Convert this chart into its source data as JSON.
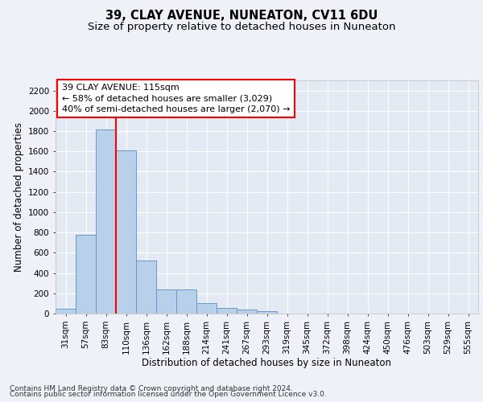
{
  "title": "39, CLAY AVENUE, NUNEATON, CV11 6DU",
  "subtitle": "Size of property relative to detached houses in Nuneaton",
  "xlabel": "Distribution of detached houses by size in Nuneaton",
  "ylabel": "Number of detached properties",
  "categories": [
    "31sqm",
    "57sqm",
    "83sqm",
    "110sqm",
    "136sqm",
    "162sqm",
    "188sqm",
    "214sqm",
    "241sqm",
    "267sqm",
    "293sqm",
    "319sqm",
    "345sqm",
    "372sqm",
    "398sqm",
    "424sqm",
    "450sqm",
    "476sqm",
    "503sqm",
    "529sqm",
    "555sqm"
  ],
  "values": [
    50,
    780,
    1820,
    1610,
    520,
    235,
    235,
    105,
    55,
    38,
    20,
    0,
    0,
    0,
    0,
    0,
    0,
    0,
    0,
    0,
    0
  ],
  "bar_color": "#b8d0ea",
  "bar_edge_color": "#6699cc",
  "bar_edge_width": 0.7,
  "redline_x": 2.5,
  "annotation_line1": "39 CLAY AVENUE: 115sqm",
  "annotation_line2": "← 58% of detached houses are smaller (3,029)",
  "annotation_line3": "40% of semi-detached houses are larger (2,070) →",
  "background_color": "#eef2f8",
  "plot_bg_color": "#e4eaf4",
  "grid_color": "#ffffff",
  "title_fontsize": 10.5,
  "subtitle_fontsize": 9.5,
  "xlabel_fontsize": 8.5,
  "ylabel_fontsize": 8.5,
  "tick_fontsize": 7.5,
  "annotation_fontsize": 8,
  "footer_text1": "Contains HM Land Registry data © Crown copyright and database right 2024.",
  "footer_text2": "Contains public sector information licensed under the Open Government Licence v3.0.",
  "ylim": [
    0,
    2300
  ],
  "yticks": [
    0,
    200,
    400,
    600,
    800,
    1000,
    1200,
    1400,
    1600,
    1800,
    2000,
    2200
  ]
}
